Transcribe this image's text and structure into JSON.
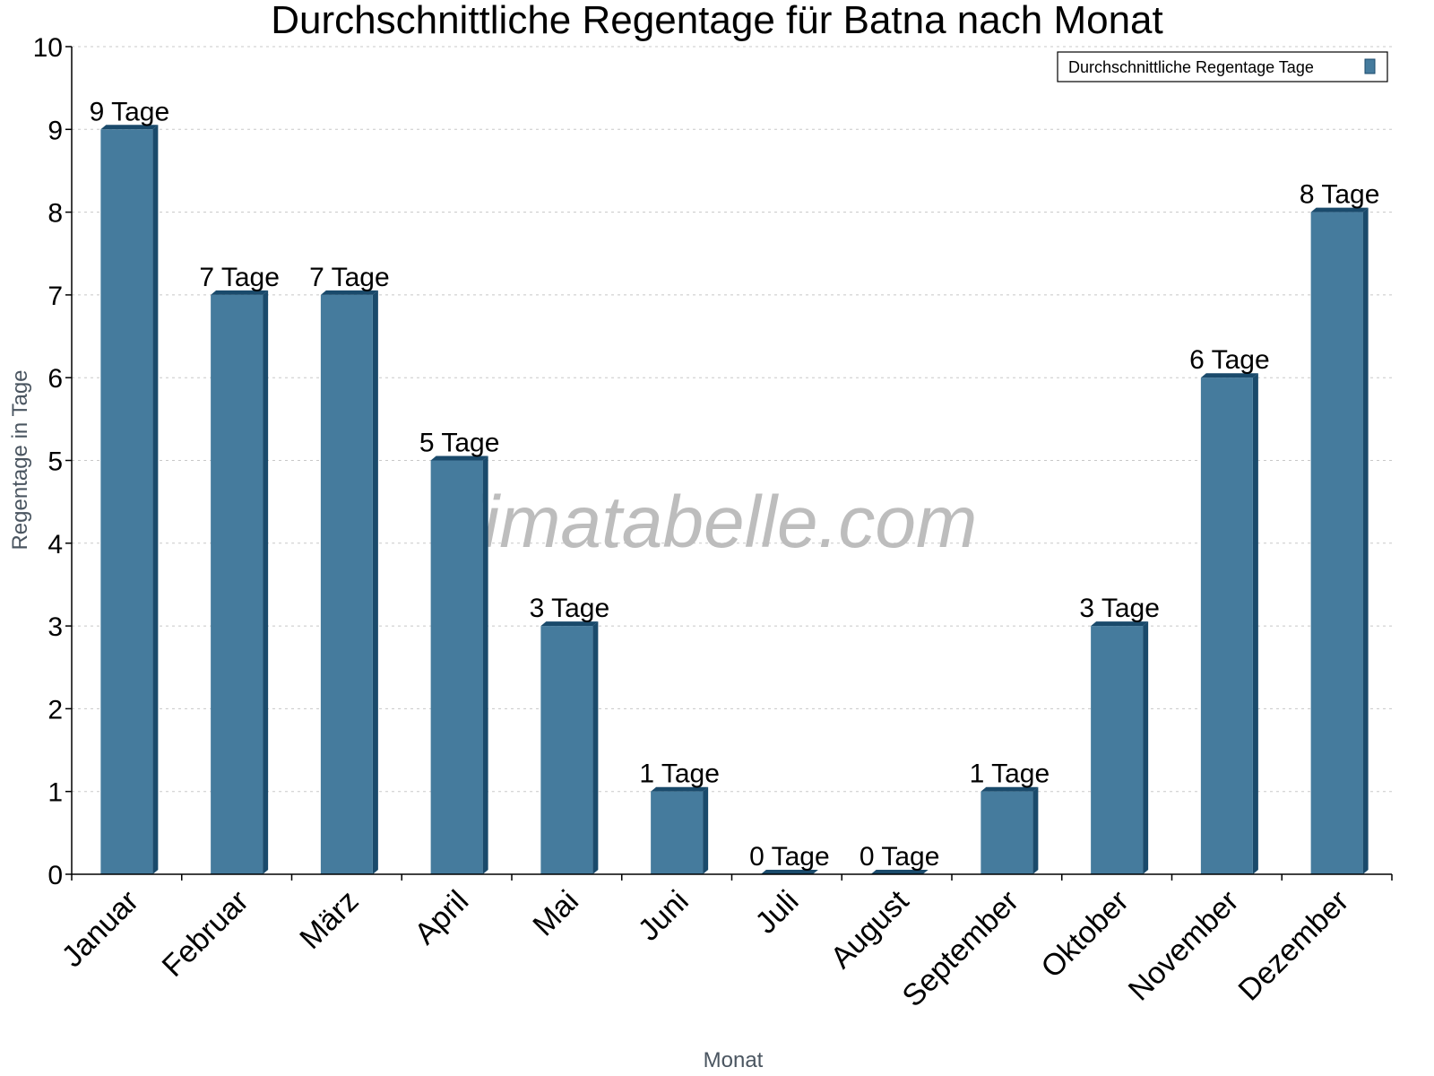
{
  "chart_data": {
    "type": "bar",
    "title": "Durchschnittliche Regentage für Batna nach Monat",
    "xlabel": "Monat",
    "ylabel": "Regentage in Tage",
    "ylim": [
      0,
      10
    ],
    "yticks": [
      0,
      1,
      2,
      3,
      4,
      5,
      6,
      7,
      8,
      9,
      10
    ],
    "grid": true,
    "legend_position": "top-right",
    "categories": [
      "Januar",
      "Februar",
      "März",
      "April",
      "Mai",
      "Juni",
      "Juli",
      "August",
      "September",
      "Oktober",
      "November",
      "Dezember"
    ],
    "series": [
      {
        "name": "Durchschnittliche Regentage Tage",
        "values": [
          9,
          7,
          7,
          5,
          3,
          1,
          0,
          0,
          1,
          3,
          6,
          8
        ],
        "color": "#457b9d",
        "side_color": "#1a4a6b"
      }
    ],
    "data_label_suffix": " Tage",
    "data_labels": [
      "9 Tage",
      "7 Tage",
      "7 Tage",
      "5 Tage",
      "3 Tage",
      "1 Tage",
      "0 Tage",
      "0 Tage",
      "1 Tage",
      "3 Tage",
      "6 Tage",
      "8 Tage"
    ],
    "watermark": "klimatabelle.com"
  },
  "legend": {
    "label": "Durchschnittliche Regentage Tage"
  }
}
